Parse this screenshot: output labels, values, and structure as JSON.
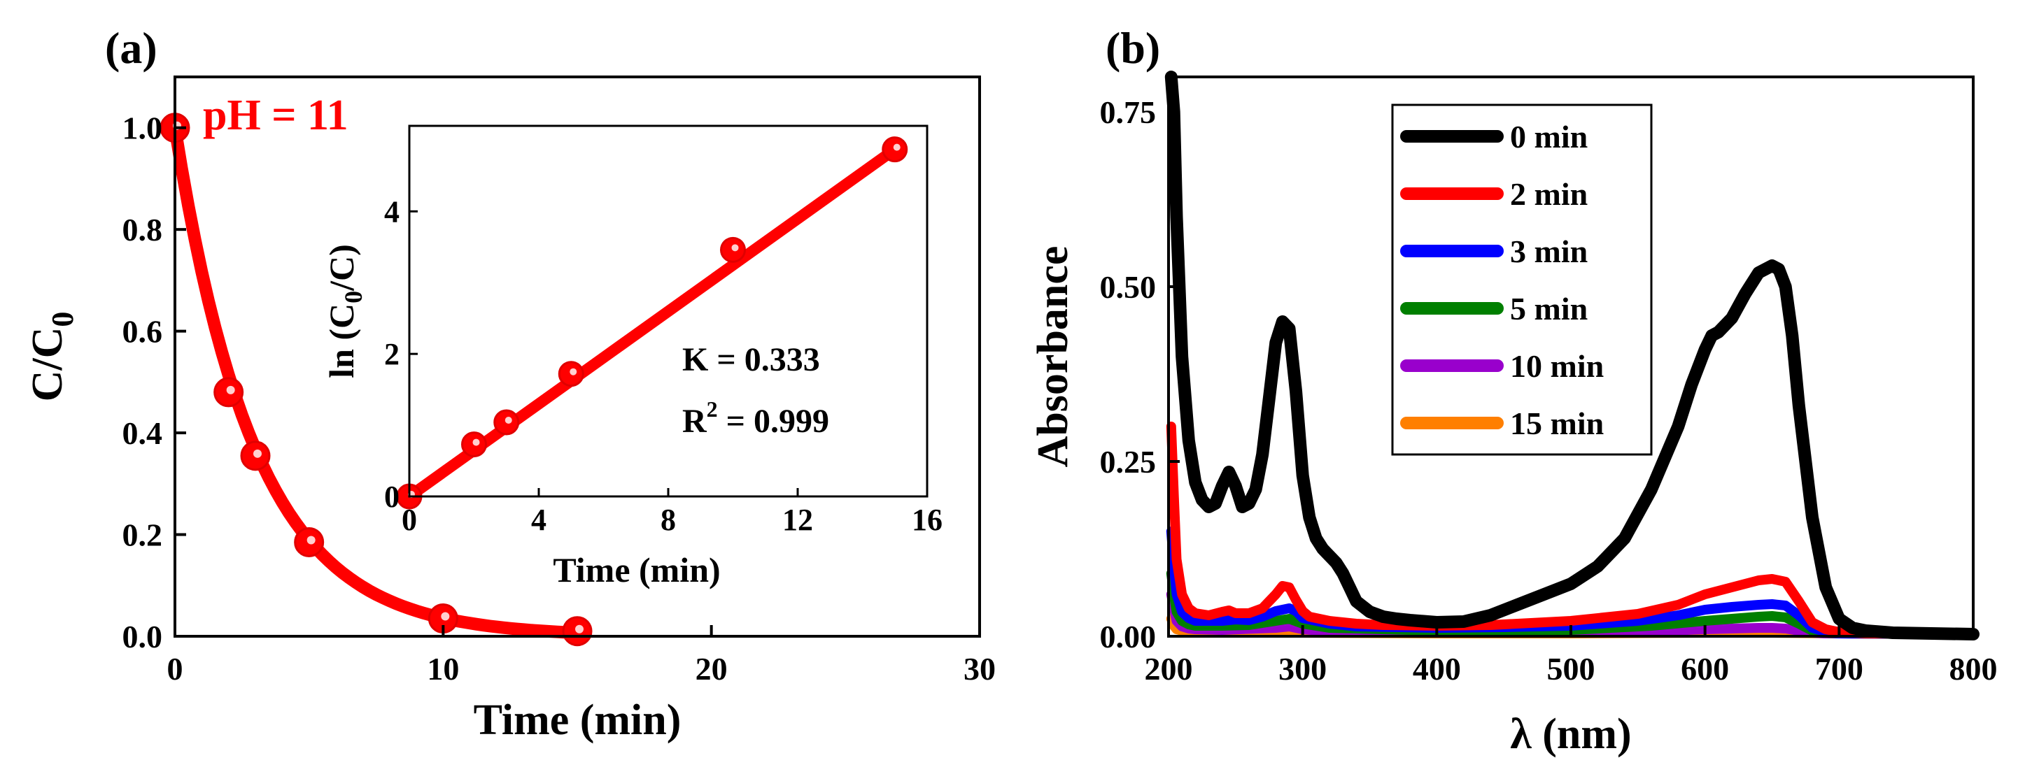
{
  "chart_data": [
    {
      "panel_label": "(a)",
      "type": "scatter",
      "annotation": "pH = 11",
      "xlabel": "Time (min)",
      "ylabel_main": "C/C",
      "ylabel_sub": "0",
      "xlim": [
        0,
        30
      ],
      "ylim": [
        0,
        1.1
      ],
      "xticks": [
        "0",
        "10",
        "20",
        "30"
      ],
      "yticks": [
        "0.0",
        "0.2",
        "0.4",
        "0.6",
        "0.8",
        "1.0"
      ],
      "series": [
        {
          "name": "pH = 11",
          "color": "#ff0000",
          "x": [
            0,
            2,
            3,
            5,
            10,
            15
          ],
          "y": [
            1.0,
            0.48,
            0.355,
            0.185,
            0.035,
            0.01
          ],
          "fit": "exponential",
          "k": 0.333
        }
      ],
      "inset": {
        "type": "scatter",
        "xlabel": "Time (min)",
        "ylabel_pre": "ln (C",
        "ylabel_sub": "0",
        "ylabel_post": "/C)",
        "xlim": [
          0,
          16
        ],
        "ylim": [
          0,
          5.2
        ],
        "xticks": [
          "0",
          "4",
          "8",
          "12",
          "16"
        ],
        "yticks": [
          "0",
          "2",
          "4"
        ],
        "x": [
          0,
          2,
          3,
          5,
          10,
          15
        ],
        "y": [
          0,
          0.73,
          1.04,
          1.72,
          3.46,
          4.87
        ],
        "fit_slope": 0.333,
        "k_text": "K = 0.333",
        "r2_pre": "R",
        "r2_sup": "2",
        "r2_post": " = 0.999"
      }
    },
    {
      "panel_label": "(b)",
      "type": "line",
      "xlabel": "λ (nm)",
      "ylabel": "Absorbance",
      "xlim": [
        200,
        800
      ],
      "ylim": [
        0,
        0.8
      ],
      "xticks": [
        "200",
        "300",
        "400",
        "500",
        "600",
        "700",
        "800"
      ],
      "yticks": [
        "0.00",
        "0.25",
        "0.50",
        "0.75"
      ],
      "legend_position": "top-center",
      "series": [
        {
          "name": "0 min",
          "color": "#000000",
          "x": [
            202,
            204,
            206,
            210,
            215,
            220,
            225,
            230,
            235,
            240,
            245,
            250,
            255,
            260,
            265,
            270,
            275,
            280,
            285,
            290,
            295,
            300,
            305,
            310,
            315,
            320,
            325,
            330,
            335,
            340,
            350,
            360,
            370,
            380,
            400,
            420,
            440,
            460,
            480,
            500,
            520,
            540,
            560,
            580,
            590,
            600,
            605,
            610,
            620,
            630,
            640,
            650,
            655,
            660,
            665,
            670,
            680,
            690,
            700,
            710,
            720,
            740,
            800
          ],
          "y": [
            0.8,
            0.75,
            0.6,
            0.4,
            0.28,
            0.22,
            0.195,
            0.185,
            0.19,
            0.215,
            0.235,
            0.215,
            0.185,
            0.19,
            0.21,
            0.26,
            0.34,
            0.42,
            0.45,
            0.44,
            0.35,
            0.23,
            0.17,
            0.14,
            0.125,
            0.115,
            0.105,
            0.09,
            0.07,
            0.05,
            0.035,
            0.028,
            0.025,
            0.023,
            0.02,
            0.021,
            0.03,
            0.045,
            0.06,
            0.075,
            0.1,
            0.14,
            0.21,
            0.3,
            0.36,
            0.41,
            0.43,
            0.435,
            0.455,
            0.49,
            0.52,
            0.53,
            0.525,
            0.5,
            0.43,
            0.33,
            0.17,
            0.07,
            0.025,
            0.012,
            0.008,
            0.005,
            0.003
          ]
        },
        {
          "name": "2 min",
          "color": "#ff0000",
          "x": [
            202,
            204,
            206,
            210,
            215,
            220,
            230,
            240,
            245,
            250,
            260,
            270,
            280,
            285,
            290,
            295,
            300,
            305,
            320,
            340,
            360,
            400,
            440,
            500,
            550,
            580,
            600,
            620,
            640,
            650,
            660,
            670,
            680,
            690,
            700,
            720,
            800
          ],
          "y": [
            0.3,
            0.2,
            0.11,
            0.06,
            0.04,
            0.033,
            0.03,
            0.035,
            0.037,
            0.033,
            0.033,
            0.04,
            0.06,
            0.072,
            0.07,
            0.052,
            0.036,
            0.028,
            0.022,
            0.018,
            0.016,
            0.015,
            0.016,
            0.022,
            0.032,
            0.045,
            0.06,
            0.07,
            0.08,
            0.082,
            0.078,
            0.05,
            0.02,
            0.01,
            0.006,
            0.004,
            0.003
          ]
        },
        {
          "name": "3 min",
          "color": "#0000ff",
          "x": [
            202,
            204,
            206,
            210,
            215,
            220,
            240,
            250,
            260,
            270,
            280,
            290,
            295,
            300,
            320,
            340,
            400,
            450,
            500,
            550,
            580,
            600,
            620,
            640,
            650,
            660,
            670,
            680,
            690,
            700,
            800
          ],
          "y": [
            0.15,
            0.1,
            0.06,
            0.035,
            0.026,
            0.022,
            0.022,
            0.024,
            0.023,
            0.028,
            0.036,
            0.04,
            0.036,
            0.026,
            0.018,
            0.014,
            0.012,
            0.013,
            0.015,
            0.022,
            0.03,
            0.038,
            0.042,
            0.045,
            0.046,
            0.044,
            0.03,
            0.012,
            0.006,
            0.004,
            0.003
          ]
        },
        {
          "name": "5 min",
          "color": "#007f00",
          "x": [
            202,
            204,
            206,
            210,
            215,
            220,
            240,
            260,
            280,
            290,
            300,
            320,
            400,
            500,
            560,
            600,
            620,
            640,
            650,
            660,
            670,
            680,
            690,
            700,
            800
          ],
          "y": [
            0.09,
            0.06,
            0.035,
            0.022,
            0.017,
            0.015,
            0.015,
            0.016,
            0.022,
            0.025,
            0.018,
            0.012,
            0.008,
            0.009,
            0.015,
            0.022,
            0.025,
            0.028,
            0.029,
            0.027,
            0.018,
            0.008,
            0.005,
            0.004,
            0.003
          ]
        },
        {
          "name": "10 min",
          "color": "#9900cc",
          "x": [
            202,
            204,
            206,
            210,
            215,
            220,
            240,
            280,
            290,
            300,
            320,
            400,
            500,
            560,
            600,
            640,
            650,
            660,
            670,
            680,
            690,
            800
          ],
          "y": [
            0.06,
            0.04,
            0.022,
            0.014,
            0.011,
            0.01,
            0.009,
            0.012,
            0.014,
            0.01,
            0.007,
            0.005,
            0.005,
            0.007,
            0.01,
            0.012,
            0.012,
            0.011,
            0.008,
            0.005,
            0.004,
            0.003
          ]
        },
        {
          "name": "15 min",
          "color": "#ff7f00",
          "x": [
            202,
            204,
            206,
            210,
            220,
            240,
            300,
            400,
            500,
            600,
            650,
            700,
            800
          ],
          "y": [
            0.025,
            0.015,
            0.01,
            0.008,
            0.006,
            0.005,
            0.005,
            0.004,
            0.004,
            0.005,
            0.005,
            0.004,
            0.003
          ]
        }
      ]
    }
  ]
}
